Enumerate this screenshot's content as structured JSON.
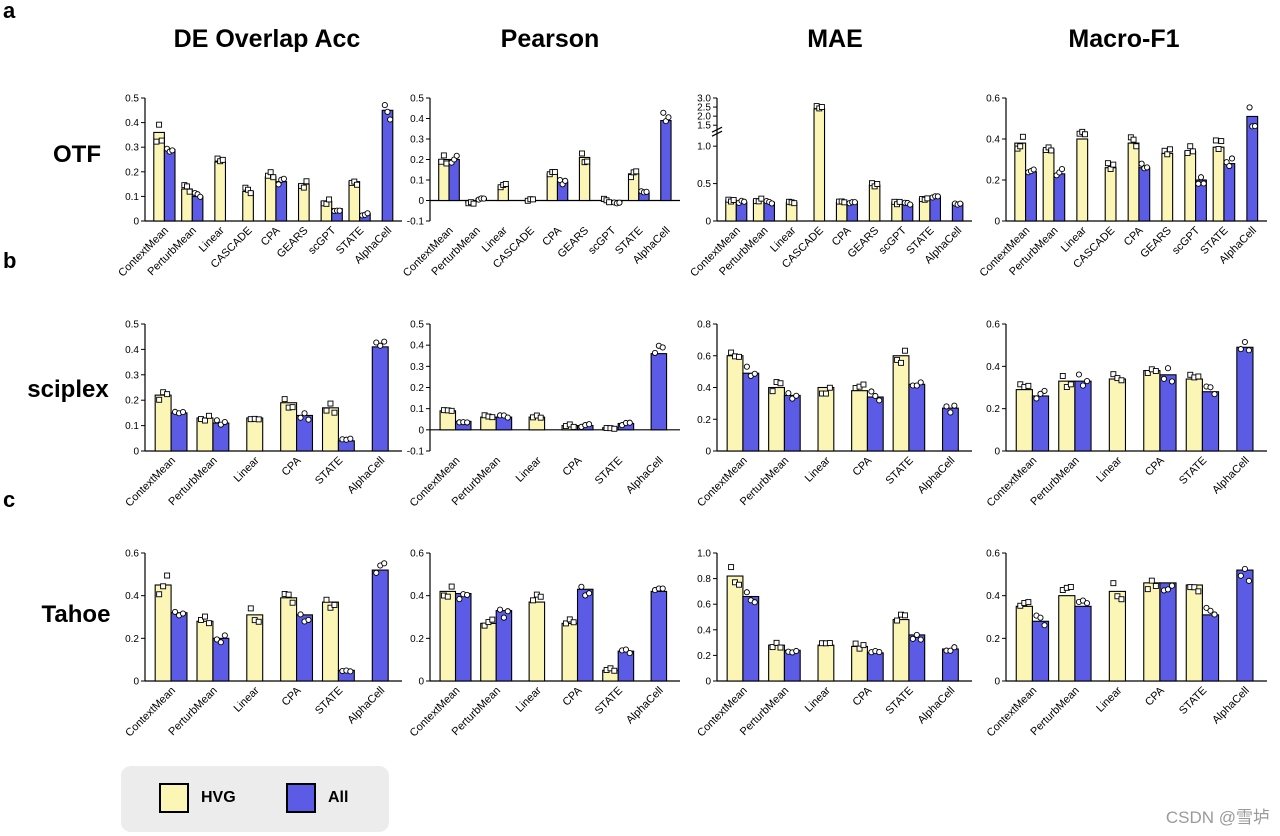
{
  "panel_letters": [
    "a",
    "b",
    "c"
  ],
  "metric_titles": [
    "DE Overlap Acc",
    "Pearson",
    "MAE",
    "Macro-F1"
  ],
  "datasets": [
    "OTF",
    "sciplex",
    "Tahoe"
  ],
  "legend": [
    {
      "label": "HVG",
      "color": "#fbf6b6"
    },
    {
      "label": "All",
      "color": "#5b5be6"
    }
  ],
  "watermark": "CSDN @雪垆",
  "colors": {
    "hvg": "#fbf6b6",
    "all": "#5b5be6",
    "axis": "#000000"
  },
  "chart_data": [
    {
      "type": "bar",
      "dataset": "OTF",
      "metric": "DE Overlap Acc",
      "categories": [
        "ContextMean",
        "PerturbMean",
        "Linear",
        "CASCADE",
        "CPA",
        "GEARS",
        "scGPT",
        "STATE",
        "AlphaCell"
      ],
      "series": [
        {
          "name": "HVG",
          "values": [
            0.36,
            0.13,
            0.24,
            0.12,
            0.18,
            0.15,
            0.08,
            0.16,
            null
          ]
        },
        {
          "name": "All",
          "values": [
            0.29,
            0.1,
            null,
            null,
            0.16,
            null,
            0.05,
            0.03,
            0.45
          ]
        }
      ],
      "ylim": [
        0,
        0.5
      ],
      "yticks": [
        0,
        0.1,
        0.2,
        0.3,
        0.4,
        0.5
      ]
    },
    {
      "type": "bar",
      "dataset": "OTF",
      "metric": "Pearson",
      "categories": [
        "ContextMean",
        "PerturbMean",
        "Linear",
        "CASCADE",
        "CPA",
        "GEARS",
        "scGPT",
        "STATE",
        "AlphaCell"
      ],
      "series": [
        {
          "name": "HVG",
          "values": [
            0.2,
            -0.01,
            0.07,
            0.0,
            0.13,
            0.21,
            0.0,
            0.13,
            null
          ]
        },
        {
          "name": "All",
          "values": [
            0.2,
            0.01,
            null,
            null,
            0.09,
            null,
            -0.01,
            0.04,
            0.39
          ]
        }
      ],
      "ylim": [
        -0.1,
        0.5
      ],
      "yticks": [
        -0.1,
        0,
        0.1,
        0.2,
        0.3,
        0.4,
        0.5
      ]
    },
    {
      "type": "bar",
      "dataset": "OTF",
      "metric": "MAE",
      "categories": [
        "ContextMean",
        "PerturbMean",
        "Linear",
        "CASCADE",
        "CPA",
        "GEARS",
        "scGPT",
        "STATE",
        "AlphaCell"
      ],
      "series": [
        {
          "name": "HVG",
          "values": [
            0.28,
            0.28,
            0.25,
            2.4,
            0.25,
            0.48,
            0.25,
            0.3,
            null
          ]
        },
        {
          "name": "All",
          "values": [
            0.25,
            0.25,
            null,
            null,
            0.26,
            null,
            0.22,
            0.33,
            0.24
          ]
        }
      ],
      "ylim": [
        0,
        3.0
      ],
      "yticks": [
        0,
        0.5,
        1.0,
        1.5,
        2.0,
        2.5,
        3.0
      ],
      "axis_break": [
        1.2,
        1.5
      ]
    },
    {
      "type": "bar",
      "dataset": "OTF",
      "metric": "Macro-F1",
      "categories": [
        "ContextMean",
        "PerturbMean",
        "Linear",
        "CASCADE",
        "CPA",
        "GEARS",
        "scGPT",
        "STATE",
        "AlphaCell"
      ],
      "series": [
        {
          "name": "HVG",
          "values": [
            0.38,
            0.35,
            0.4,
            0.26,
            0.38,
            0.33,
            0.34,
            0.36,
            null
          ]
        },
        {
          "name": "All",
          "values": [
            0.24,
            0.23,
            null,
            null,
            0.26,
            null,
            0.2,
            0.28,
            0.51
          ]
        }
      ],
      "ylim": [
        0,
        0.6
      ],
      "yticks": [
        0,
        0.2,
        0.4,
        0.6
      ]
    },
    {
      "type": "bar",
      "dataset": "sciplex",
      "metric": "DE Overlap Acc",
      "categories": [
        "ContextMean",
        "PerturbMean",
        "Linear",
        "CPA",
        "STATE",
        "AlphaCell"
      ],
      "series": [
        {
          "name": "HVG",
          "values": [
            0.22,
            0.13,
            0.13,
            0.19,
            0.17,
            null
          ]
        },
        {
          "name": "All",
          "values": [
            0.15,
            0.11,
            null,
            0.14,
            0.04,
            0.41
          ]
        }
      ],
      "ylim": [
        0,
        0.5
      ],
      "yticks": [
        0,
        0.1,
        0.2,
        0.3,
        0.4,
        0.5
      ]
    },
    {
      "type": "bar",
      "dataset": "sciplex",
      "metric": "Pearson",
      "categories": [
        "ContextMean",
        "PerturbMean",
        "Linear",
        "CPA",
        "STATE",
        "AlphaCell"
      ],
      "series": [
        {
          "name": "HVG",
          "values": [
            0.09,
            0.06,
            0.06,
            0.02,
            0.01,
            null
          ]
        },
        {
          "name": "All",
          "values": [
            0.04,
            0.06,
            null,
            0.02,
            0.03,
            0.36
          ]
        }
      ],
      "ylim": [
        -0.1,
        0.5
      ],
      "yticks": [
        -0.1,
        0,
        0.1,
        0.2,
        0.3,
        0.4,
        0.5
      ]
    },
    {
      "type": "bar",
      "dataset": "sciplex",
      "metric": "MAE",
      "categories": [
        "ContextMean",
        "PerturbMean",
        "Linear",
        "CPA",
        "STATE",
        "AlphaCell"
      ],
      "series": [
        {
          "name": "HVG",
          "values": [
            0.6,
            0.4,
            0.4,
            0.38,
            0.6,
            null
          ]
        },
        {
          "name": "All",
          "values": [
            0.49,
            0.35,
            null,
            0.34,
            0.42,
            0.27
          ]
        }
      ],
      "ylim": [
        0,
        0.8
      ],
      "yticks": [
        0,
        0.2,
        0.4,
        0.6,
        0.8
      ]
    },
    {
      "type": "bar",
      "dataset": "sciplex",
      "metric": "Macro-F1",
      "categories": [
        "ContextMean",
        "PerturbMean",
        "Linear",
        "CPA",
        "STATE",
        "AlphaCell"
      ],
      "series": [
        {
          "name": "HVG",
          "values": [
            0.29,
            0.33,
            0.34,
            0.38,
            0.34,
            null
          ]
        },
        {
          "name": "All",
          "values": [
            0.26,
            0.33,
            null,
            0.36,
            0.28,
            0.49
          ]
        }
      ],
      "ylim": [
        0,
        0.6
      ],
      "yticks": [
        0,
        0.2,
        0.4,
        0.6
      ]
    },
    {
      "type": "bar",
      "dataset": "Tahoe",
      "metric": "DE Overlap Acc",
      "categories": [
        "ContextMean",
        "PerturbMean",
        "Linear",
        "CPA",
        "STATE",
        "AlphaCell"
      ],
      "series": [
        {
          "name": "HVG",
          "values": [
            0.45,
            0.28,
            0.31,
            0.39,
            0.37,
            null
          ]
        },
        {
          "name": "All",
          "values": [
            0.32,
            0.2,
            null,
            0.31,
            0.05,
            0.52
          ]
        }
      ],
      "ylim": [
        0,
        0.6
      ],
      "yticks": [
        0,
        0.2,
        0.4,
        0.6
      ]
    },
    {
      "type": "bar",
      "dataset": "Tahoe",
      "metric": "Pearson",
      "categories": [
        "ContextMean",
        "PerturbMean",
        "Linear",
        "CPA",
        "STATE",
        "AlphaCell"
      ],
      "series": [
        {
          "name": "HVG",
          "values": [
            0.42,
            0.27,
            0.37,
            0.27,
            0.05,
            null
          ]
        },
        {
          "name": "All",
          "values": [
            0.41,
            0.33,
            null,
            0.43,
            0.14,
            0.42
          ]
        }
      ],
      "ylim": [
        0,
        0.6
      ],
      "yticks": [
        0,
        0.2,
        0.4,
        0.6
      ]
    },
    {
      "type": "bar",
      "dataset": "Tahoe",
      "metric": "MAE",
      "categories": [
        "ContextMean",
        "PerturbMean",
        "Linear",
        "CPA",
        "STATE",
        "AlphaCell"
      ],
      "series": [
        {
          "name": "HVG",
          "values": [
            0.82,
            0.28,
            0.28,
            0.27,
            0.48,
            null
          ]
        },
        {
          "name": "All",
          "values": [
            0.66,
            0.24,
            null,
            0.22,
            0.36,
            0.25
          ]
        }
      ],
      "ylim": [
        0,
        1.0
      ],
      "yticks": [
        0,
        0.2,
        0.4,
        0.6,
        0.8,
        1.0
      ]
    },
    {
      "type": "bar",
      "dataset": "Tahoe",
      "metric": "Macro-F1",
      "categories": [
        "ContextMean",
        "PerturbMean",
        "Linear",
        "CPA",
        "STATE",
        "AlphaCell"
      ],
      "series": [
        {
          "name": "HVG",
          "values": [
            0.35,
            0.4,
            0.42,
            0.46,
            0.45,
            null
          ]
        },
        {
          "name": "All",
          "values": [
            0.28,
            0.35,
            null,
            0.46,
            0.31,
            0.52
          ]
        }
      ],
      "ylim": [
        0,
        0.6
      ],
      "yticks": [
        0,
        0.2,
        0.4,
        0.6
      ]
    }
  ]
}
